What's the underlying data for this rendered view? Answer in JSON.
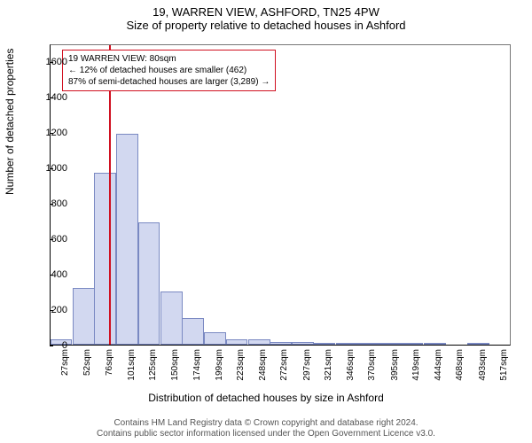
{
  "title": {
    "line1": "19, WARREN VIEW, ASHFORD, TN25 4PW",
    "line2": "Size of property relative to detached houses in Ashford"
  },
  "ylabel": "Number of detached properties",
  "xlabel": "Distribution of detached houses by size in Ashford",
  "footer": {
    "line1": "Contains HM Land Registry data © Crown copyright and database right 2024.",
    "line2": "Contains public sector information licensed under the Open Government Licence v3.0."
  },
  "annotation": {
    "line1": "19 WARREN VIEW: 80sqm",
    "line2": "← 12% of detached houses are smaller (462)",
    "line3": "87% of semi-detached houses are larger (3,289) →"
  },
  "chart": {
    "type": "histogram",
    "background_color": "#ffffff",
    "bar_fill": "#d2d8f0",
    "bar_border": "#7a89c2",
    "ref_line_color": "#d01020",
    "ref_line_x": 80,
    "xlim": [
      15,
      530
    ],
    "ylim": [
      0,
      1700
    ],
    "yticks": [
      0,
      200,
      400,
      600,
      800,
      1000,
      1200,
      1400,
      1600
    ],
    "xticks": [
      27,
      52,
      76,
      101,
      125,
      150,
      174,
      199,
      223,
      248,
      272,
      297,
      321,
      346,
      370,
      395,
      419,
      444,
      468,
      493,
      517
    ],
    "xtick_suffix": "sqm",
    "bar_width_sqm": 24.5,
    "bars": [
      {
        "x": 27,
        "y": 30
      },
      {
        "x": 52,
        "y": 320
      },
      {
        "x": 76,
        "y": 970
      },
      {
        "x": 101,
        "y": 1190
      },
      {
        "x": 125,
        "y": 690
      },
      {
        "x": 150,
        "y": 300
      },
      {
        "x": 174,
        "y": 150
      },
      {
        "x": 199,
        "y": 70
      },
      {
        "x": 223,
        "y": 30
      },
      {
        "x": 248,
        "y": 30
      },
      {
        "x": 272,
        "y": 15
      },
      {
        "x": 297,
        "y": 15
      },
      {
        "x": 321,
        "y": 10
      },
      {
        "x": 346,
        "y": 8
      },
      {
        "x": 370,
        "y": 5
      },
      {
        "x": 395,
        "y": 10
      },
      {
        "x": 419,
        "y": 5
      },
      {
        "x": 444,
        "y": 3
      },
      {
        "x": 468,
        "y": 0
      },
      {
        "x": 493,
        "y": 3
      },
      {
        "x": 517,
        "y": 0
      }
    ]
  }
}
